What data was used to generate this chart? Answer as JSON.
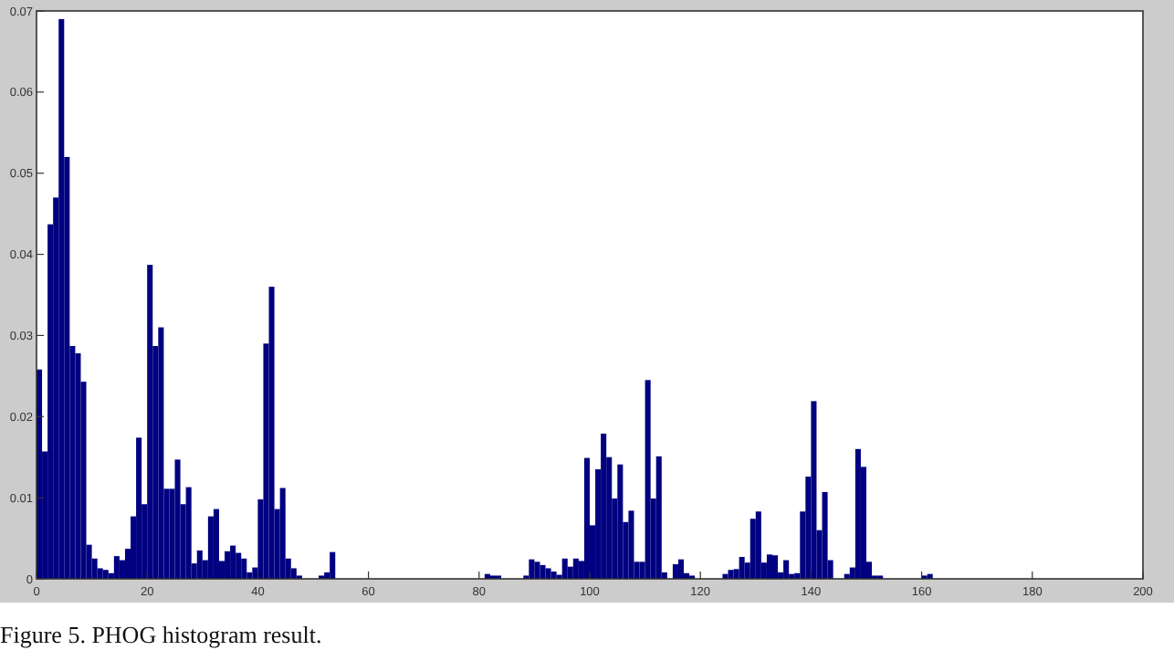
{
  "chart_data": {
    "type": "bar",
    "x": [
      0.5,
      1.5,
      2.5,
      3.5,
      4.5,
      5.5,
      6.5,
      7.5,
      8.5,
      9.5,
      10.5,
      11.5,
      12.5,
      13.5,
      14.5,
      15.5,
      16.5,
      17.5,
      18.5,
      19.5,
      20.5,
      21.5,
      22.5,
      23.5,
      24.5,
      25.5,
      26.5,
      27.5,
      28.5,
      29.5,
      30.5,
      31.5,
      32.5,
      33.5,
      34.5,
      35.5,
      36.5,
      37.5,
      38.5,
      39.5,
      40.5,
      41.5,
      42.5,
      43.5,
      44.5,
      45.5,
      46.5,
      47.5,
      51.5,
      52.5,
      53.5,
      81.5,
      82.5,
      83.5,
      88.5,
      89.5,
      90.5,
      91.5,
      92.5,
      93.5,
      94.5,
      95.5,
      96.5,
      97.5,
      98.5,
      99.5,
      100.5,
      101.5,
      102.5,
      103.5,
      104.5,
      105.5,
      106.5,
      107.5,
      108.5,
      109.5,
      110.5,
      111.5,
      112.5,
      113.5,
      115.5,
      116.5,
      117.5,
      118.5,
      124.5,
      125.5,
      126.5,
      127.5,
      128.5,
      129.5,
      130.5,
      131.5,
      132.5,
      133.5,
      134.5,
      135.5,
      136.5,
      137.5,
      138.5,
      139.5,
      140.5,
      141.5,
      142.5,
      143.5,
      146.5,
      147.5,
      148.5,
      149.5,
      150.5,
      151.5,
      152.5,
      160.5,
      161.5
    ],
    "values": [
      0.0258,
      0.0157,
      0.0437,
      0.047,
      0.069,
      0.052,
      0.0287,
      0.0278,
      0.0243,
      0.0042,
      0.0025,
      0.0013,
      0.0011,
      0.0007,
      0.0028,
      0.0023,
      0.0037,
      0.0077,
      0.0174,
      0.0092,
      0.0387,
      0.0287,
      0.031,
      0.0111,
      0.0111,
      0.0147,
      0.0092,
      0.0113,
      0.0019,
      0.0035,
      0.0023,
      0.0077,
      0.0086,
      0.0022,
      0.0034,
      0.0041,
      0.0032,
      0.0025,
      0.0008,
      0.0014,
      0.0098,
      0.029,
      0.036,
      0.0086,
      0.0112,
      0.0025,
      0.0013,
      0.0004,
      0.0004,
      0.0008,
      0.0033,
      0.0006,
      0.0004,
      0.0004,
      0.0004,
      0.0024,
      0.0021,
      0.0017,
      0.0013,
      0.0009,
      0.0005,
      0.0025,
      0.0015,
      0.0025,
      0.0022,
      0.0149,
      0.0066,
      0.0135,
      0.0179,
      0.015,
      0.0099,
      0.0141,
      0.007,
      0.0084,
      0.0021,
      0.0021,
      0.0245,
      0.0099,
      0.0151,
      0.0008,
      0.0018,
      0.0024,
      0.0007,
      0.0004,
      0.0006,
      0.0011,
      0.0012,
      0.0027,
      0.002,
      0.0074,
      0.0083,
      0.002,
      0.003,
      0.0029,
      0.0008,
      0.0023,
      0.0006,
      0.0007,
      0.0083,
      0.0126,
      0.0219,
      0.006,
      0.0107,
      0.0023,
      0.0006,
      0.0014,
      0.016,
      0.0138,
      0.0021,
      0.0004,
      0.0004,
      0.0004,
      0.0006
    ],
    "color": "#000080",
    "xlim": [
      0,
      200
    ],
    "xticks": [
      0,
      20,
      40,
      60,
      80,
      100,
      120,
      140,
      160,
      180,
      200
    ],
    "ylim": [
      0,
      0.07
    ],
    "yticks": [
      0,
      0.01,
      0.02,
      0.03,
      0.04,
      0.05,
      0.06,
      0.07
    ],
    "annotations": [
      "Figure 5. PHOG histogram result."
    ]
  }
}
